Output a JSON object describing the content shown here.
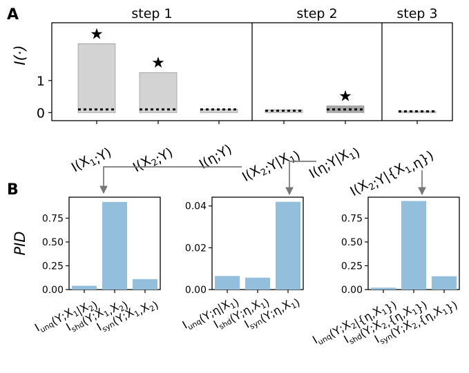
{
  "panel_labels": {
    "a": "A",
    "b": "B"
  },
  "colors": {
    "bar_gray": "#d3d3d3",
    "bar_dark": "#a8a8a8",
    "bar_blue": "#93bfdc",
    "arrow": "#777777",
    "axis": "#000000"
  },
  "star_symbol": "★",
  "chart_data": [
    {
      "type": "bar",
      "panel": "A",
      "ylabel": "I(·)",
      "yticks": [
        0,
        1
      ],
      "ylim": [
        -0.25,
        2.8
      ],
      "steps": [
        "step 1",
        "step 2",
        "step 3"
      ],
      "categories": [
        "I(X1;Y)",
        "I(X2;Y)",
        "I(η;Y)",
        "I(X2;Y|X1)",
        "I(η;Y|X1)",
        "I(X2;Y|{X1,η})"
      ],
      "values": [
        2.15,
        1.25,
        0.1,
        0.09,
        0.21,
        0.05
      ],
      "null_threshold": [
        0.1,
        0.1,
        0.1,
        0.06,
        0.1,
        0.04
      ],
      "significant": [
        true,
        true,
        false,
        false,
        true,
        false
      ],
      "highlight": [
        false,
        false,
        false,
        false,
        true,
        false
      ]
    },
    {
      "type": "bar",
      "panel": "B1",
      "ylabel": "PID",
      "ylim": [
        0,
        0.97
      ],
      "yticks": [
        0.0,
        0.25,
        0.5,
        0.75
      ],
      "yticklabels": [
        "0.00",
        "0.25",
        "0.50",
        "0.75"
      ],
      "categories": [
        "Iunq(Y;X1|X2)",
        "Ishd(Y;X1,X2)",
        "Isyn(Y;X1,X2)"
      ],
      "values": [
        0.04,
        0.92,
        0.11
      ]
    },
    {
      "type": "bar",
      "panel": "B2",
      "ylim": [
        0,
        0.0442
      ],
      "yticks": [
        0.0,
        0.02,
        0.04
      ],
      "yticklabels": [
        "0.00",
        "0.02",
        "0.04"
      ],
      "categories": [
        "Iunq(Y;η|X1)",
        "Ishd(Y;η,X1)",
        "Isyn(Y;η,X1)"
      ],
      "values": [
        0.0065,
        0.0057,
        0.042
      ]
    },
    {
      "type": "bar",
      "panel": "B3",
      "ylim": [
        0,
        0.97
      ],
      "yticks": [
        0.0,
        0.25,
        0.5,
        0.75
      ],
      "yticklabels": [
        "0.00",
        "0.25",
        "0.50",
        "0.75"
      ],
      "categories": [
        "Iunq(Y;X2|{η,X1})",
        "Ishd(Y;X2,{η,X1})",
        "Isyn(Y;X2,{η,X1})"
      ],
      "values": [
        0.02,
        0.93,
        0.14
      ]
    }
  ]
}
